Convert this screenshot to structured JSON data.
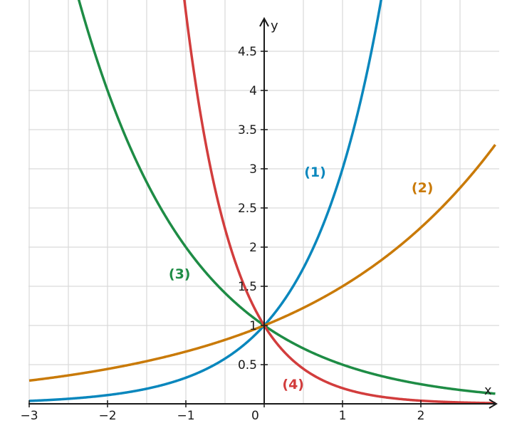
{
  "chart_data": {
    "type": "line",
    "title": "",
    "xlabel": "x",
    "ylabel": "y",
    "xlim": [
      -3,
      2.95
    ],
    "ylim": [
      0,
      4.95
    ],
    "grid": true,
    "x_ticks": [
      {
        "value": -3,
        "label": "−3"
      },
      {
        "value": -2,
        "label": "−2"
      },
      {
        "value": -1,
        "label": "−1"
      },
      {
        "value": 0,
        "label": "0"
      },
      {
        "value": 1,
        "label": "1"
      },
      {
        "value": 2,
        "label": "2"
      }
    ],
    "y_ticks": [
      {
        "value": 0.5,
        "label": "0.5"
      },
      {
        "value": 1,
        "label": "1"
      },
      {
        "value": 1.5,
        "label": "1.5"
      },
      {
        "value": 2,
        "label": "2"
      },
      {
        "value": 2.5,
        "label": "2.5"
      },
      {
        "value": 3,
        "label": "3"
      },
      {
        "value": 3.5,
        "label": "3.5"
      },
      {
        "value": 4,
        "label": "4"
      },
      {
        "value": 4.5,
        "label": "4.5"
      }
    ],
    "series": [
      {
        "label": "(1)",
        "base": 3,
        "color": "#0a87bd",
        "label_x": 0.65,
        "label_y": 2.9
      },
      {
        "label": "(2)",
        "base": 1.5,
        "color": "#c97a08",
        "label_x": 2.02,
        "label_y": 2.7
      },
      {
        "label": "(3)",
        "base": 0.5,
        "color": "#1e8c45",
        "label_x": -1.08,
        "label_y": 1.6
      },
      {
        "label": "(4)",
        "base": 0.2,
        "color": "#d23d3d",
        "label_x": 0.37,
        "label_y": 0.19
      }
    ]
  }
}
